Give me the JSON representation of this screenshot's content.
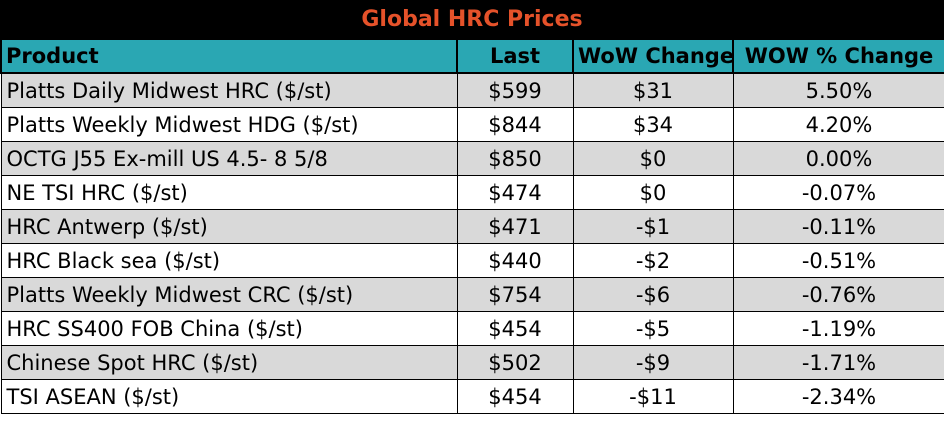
{
  "title": "Global HRC Prices",
  "colors": {
    "title_bg": "#000000",
    "title_text": "#e5522a",
    "header_bg": "#2aa7b3",
    "row_shade": "#d9d9d9"
  },
  "headers": {
    "product": "Product",
    "last": "Last",
    "wow_change": "WoW Change",
    "wow_pct_change": "WOW % Change"
  },
  "rows": [
    {
      "product": "Platts Daily Midwest HRC ($/st)",
      "last": "$599",
      "wow_change": "$31",
      "wow_pct_change": "5.50%"
    },
    {
      "product": "Platts Weekly Midwest HDG ($/st)",
      "last": "$844",
      "wow_change": "$34",
      "wow_pct_change": "4.20%"
    },
    {
      "product": "OCTG J55 Ex-mill US 4.5- 8 5/8",
      "last": "$850",
      "wow_change": "$0",
      "wow_pct_change": "0.00%"
    },
    {
      "product": "NE TSI HRC ($/st)",
      "last": "$474",
      "wow_change": "$0",
      "wow_pct_change": "-0.07%"
    },
    {
      "product": "HRC Antwerp ($/st)",
      "last": "$471",
      "wow_change": "-$1",
      "wow_pct_change": "-0.11%"
    },
    {
      "product": "HRC Black sea ($/st)",
      "last": "$440",
      "wow_change": "-$2",
      "wow_pct_change": "-0.51%"
    },
    {
      "product": "Platts Weekly Midwest CRC ($/st)",
      "last": "$754",
      "wow_change": "-$6",
      "wow_pct_change": "-0.76%"
    },
    {
      "product": "HRC SS400 FOB China ($/st)",
      "last": "$454",
      "wow_change": "-$5",
      "wow_pct_change": "-1.19%"
    },
    {
      "product": "Chinese Spot HRC ($/st)",
      "last": "$502",
      "wow_change": "-$9",
      "wow_pct_change": "-1.71%"
    },
    {
      "product": "TSI ASEAN ($/st)",
      "last": "$454",
      "wow_change": "-$11",
      "wow_pct_change": "-2.34%"
    }
  ]
}
